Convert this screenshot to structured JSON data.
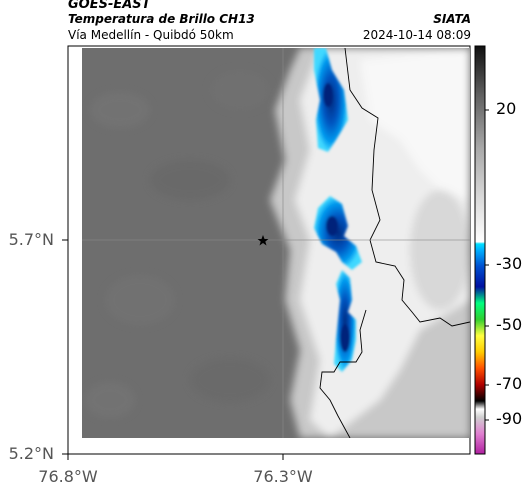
{
  "header": {
    "satellite": "GOES-EAST",
    "product": "Temperatura de Brillo CH13",
    "region": "Vía Medellín - Quibdó 50km",
    "source": "SIATA",
    "datetime": "2024-10-14 08:09"
  },
  "axes": {
    "lat_labels": [
      "5.7°N",
      "5.2°N"
    ],
    "lon_labels": [
      "76.8°W",
      "76.3°W"
    ]
  },
  "colorbar": {
    "tick_labels": [
      "20",
      "-30",
      "-50",
      "-70",
      "-90"
    ],
    "stops": [
      "#b020a0",
      "#e060c0",
      "#ffffff",
      "#a0a0a0",
      "#000000",
      "#ff0000",
      "#ff9900",
      "#ffff00",
      "#00c000",
      "#00ff60",
      "#0000aa",
      "#0060ff",
      "#00c8ff",
      "#d8d8d8",
      "#888888",
      "#222222"
    ]
  },
  "map": {
    "marker_icon": "star-icon",
    "background_color": "#6e6e6e",
    "cloud_color": "#f4f4f4",
    "cold_color": "#0066cc"
  }
}
